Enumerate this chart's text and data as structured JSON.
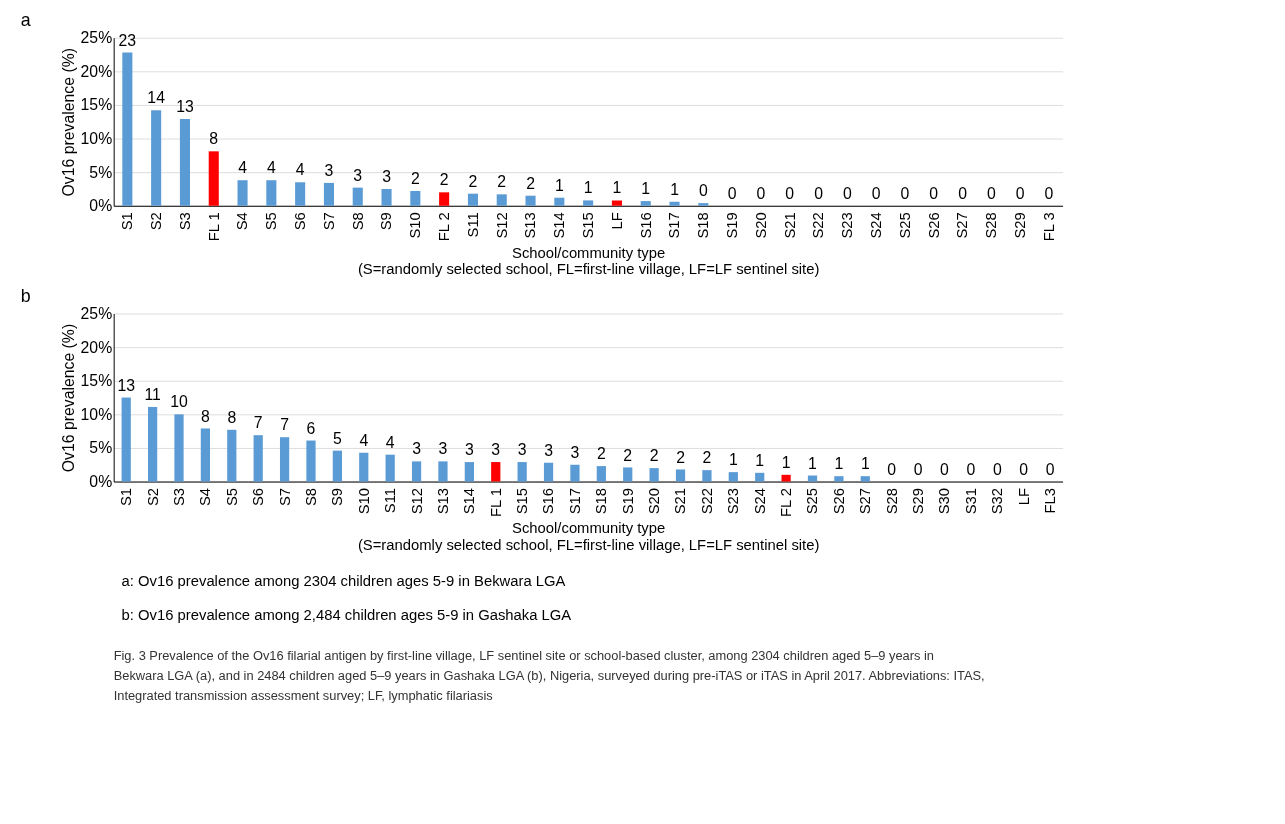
{
  "chart_data": [
    {
      "type": "bar",
      "title": "a",
      "xlabel": "School/community type\n(S=randomly selected school, FL=first-line village, LF=LF sentinel site)",
      "ylabel": "Ov16 prevalence (%)",
      "categories": [
        "S1",
        "S2",
        "S3",
        "FL 1",
        "S4",
        "S5",
        "S6",
        "S7",
        "S8",
        "S9",
        "S10",
        "FL 2",
        "S11",
        "S12",
        "S13",
        "S14",
        "S15",
        "LF",
        "S16",
        "S17",
        "S18",
        "S19",
        "S20",
        "S21",
        "S22",
        "S23",
        "S24",
        "S25",
        "S26",
        "S27",
        "S28",
        "S29",
        "FL 3"
      ],
      "values": [
        22.8,
        14.2,
        12.9,
        8.1,
        3.8,
        3.8,
        3.5,
        3.4,
        2.7,
        2.5,
        2.2,
        2.0,
        1.8,
        1.7,
        1.5,
        1.2,
        0.8,
        0.8,
        0.7,
        0.6,
        0.4,
        0,
        0,
        0,
        0,
        0,
        0,
        0,
        0,
        0,
        0,
        0,
        0
      ],
      "value_labels": [
        "23",
        "14",
        "13",
        "8",
        "4",
        "4",
        "4",
        "3",
        "3",
        "3",
        "2",
        "2",
        "2",
        "2",
        "2",
        "1",
        "1",
        "1",
        "1",
        "1",
        "0",
        "0",
        "0",
        "0",
        "0",
        "0",
        "0",
        "0",
        "0",
        "0",
        "0",
        "0",
        "0"
      ],
      "colors": [
        "#5b9bd5",
        "#5b9bd5",
        "#5b9bd5",
        "#ff0000",
        "#5b9bd5",
        "#5b9bd5",
        "#5b9bd5",
        "#5b9bd5",
        "#5b9bd5",
        "#5b9bd5",
        "#5b9bd5",
        "#ff0000",
        "#5b9bd5",
        "#5b9bd5",
        "#5b9bd5",
        "#5b9bd5",
        "#5b9bd5",
        "#ff0000",
        "#5b9bd5",
        "#5b9bd5",
        "#5b9bd5",
        "#5b9bd5",
        "#5b9bd5",
        "#5b9bd5",
        "#5b9bd5",
        "#5b9bd5",
        "#5b9bd5",
        "#5b9bd5",
        "#5b9bd5",
        "#5b9bd5",
        "#5b9bd5",
        "#5b9bd5",
        "#5b9bd5"
      ],
      "ylim": [
        0,
        25
      ],
      "yticks": [
        {
          "value": 0,
          "label": "0%"
        },
        {
          "value": 5,
          "label": "5%"
        },
        {
          "value": 10,
          "label": "10%"
        },
        {
          "value": 15,
          "label": "15%"
        },
        {
          "value": 20,
          "label": "20%"
        },
        {
          "value": 25,
          "label": "25%"
        }
      ],
      "grid": "y"
    },
    {
      "type": "bar",
      "title": "b",
      "xlabel": "School/community type\n(S=randomly selected school, FL=first-line village, LF=LF sentinel site)",
      "ylabel": "Ov16 prevalence (%)",
      "categories": [
        "S1",
        "S2",
        "S3",
        "S4",
        "S5",
        "S6",
        "S7",
        "S8",
        "S9",
        "S10",
        "S11",
        "S12",
        "S13",
        "S14",
        "FL 1",
        "S15",
        "S16",
        "S17",
        "S18",
        "S19",
        "S20",
        "S21",
        "S22",
        "S23",
        "S24",
        "FL 2",
        "S25",
        "S26",
        "S27",
        "S28",
        "S29",
        "S30",
        "S31",
        "S32",
        "LF",
        "FL3"
      ],
      "values": [
        12.5,
        11.1,
        10.0,
        7.9,
        7.7,
        6.9,
        6.6,
        6.1,
        4.6,
        4.3,
        4.0,
        3.0,
        3.0,
        2.9,
        2.9,
        2.9,
        2.8,
        2.5,
        2.3,
        2.1,
        2.0,
        1.8,
        1.7,
        1.4,
        1.3,
        1.0,
        0.9,
        0.8,
        0.8,
        0,
        0,
        0,
        0,
        0,
        0,
        0
      ],
      "value_labels": [
        "13",
        "11",
        "10",
        "8",
        "8",
        "7",
        "7",
        "6",
        "5",
        "4",
        "4",
        "3",
        "3",
        "3",
        "3",
        "3",
        "3",
        "3",
        "2",
        "2",
        "2",
        "2",
        "2",
        "1",
        "1",
        "1",
        "1",
        "1",
        "1",
        "0",
        "0",
        "0",
        "0",
        "0",
        "0",
        "0"
      ],
      "colors": [
        "#5b9bd5",
        "#5b9bd5",
        "#5b9bd5",
        "#5b9bd5",
        "#5b9bd5",
        "#5b9bd5",
        "#5b9bd5",
        "#5b9bd5",
        "#5b9bd5",
        "#5b9bd5",
        "#5b9bd5",
        "#5b9bd5",
        "#5b9bd5",
        "#5b9bd5",
        "#ff0000",
        "#5b9bd5",
        "#5b9bd5",
        "#5b9bd5",
        "#5b9bd5",
        "#5b9bd5",
        "#5b9bd5",
        "#5b9bd5",
        "#5b9bd5",
        "#5b9bd5",
        "#5b9bd5",
        "#ff0000",
        "#5b9bd5",
        "#5b9bd5",
        "#5b9bd5",
        "#5b9bd5",
        "#5b9bd5",
        "#5b9bd5",
        "#5b9bd5",
        "#5b9bd5",
        "#5b9bd5",
        "#5b9bd5"
      ],
      "ylim": [
        0,
        25
      ],
      "yticks": [
        {
          "value": 0,
          "label": "0%"
        },
        {
          "value": 5,
          "label": "5%"
        },
        {
          "value": 10,
          "label": "10%"
        },
        {
          "value": 15,
          "label": "15%"
        },
        {
          "value": 20,
          "label": "20%"
        },
        {
          "value": 25,
          "label": "25%"
        }
      ],
      "grid": "y"
    },
    {
      "type": "other",
      "annotations": [
        "a: Ov16 prevalence among 2304 children ages 5-9 in Bekwara LGA",
        "b: Ov16 prevalence among 2,484 children ages 5-9 in Gashaka LGA",
        "Fig. 3  Prevalence of the Ov16 filarial antigen by first-line village, LF sentinel site or school-based cluster, among 2304 children aged 5–9 years in Bekwara LGA (a), and in 2484 children aged 5–9 years in Gashaka LGA (b), Nigeria, surveyed during pre-iTAS or iTAS in April 2017. Abbreviations: ITAS, Integrated transmission assessment survey; LF, lymphatic filariasis"
      ]
    }
  ]
}
